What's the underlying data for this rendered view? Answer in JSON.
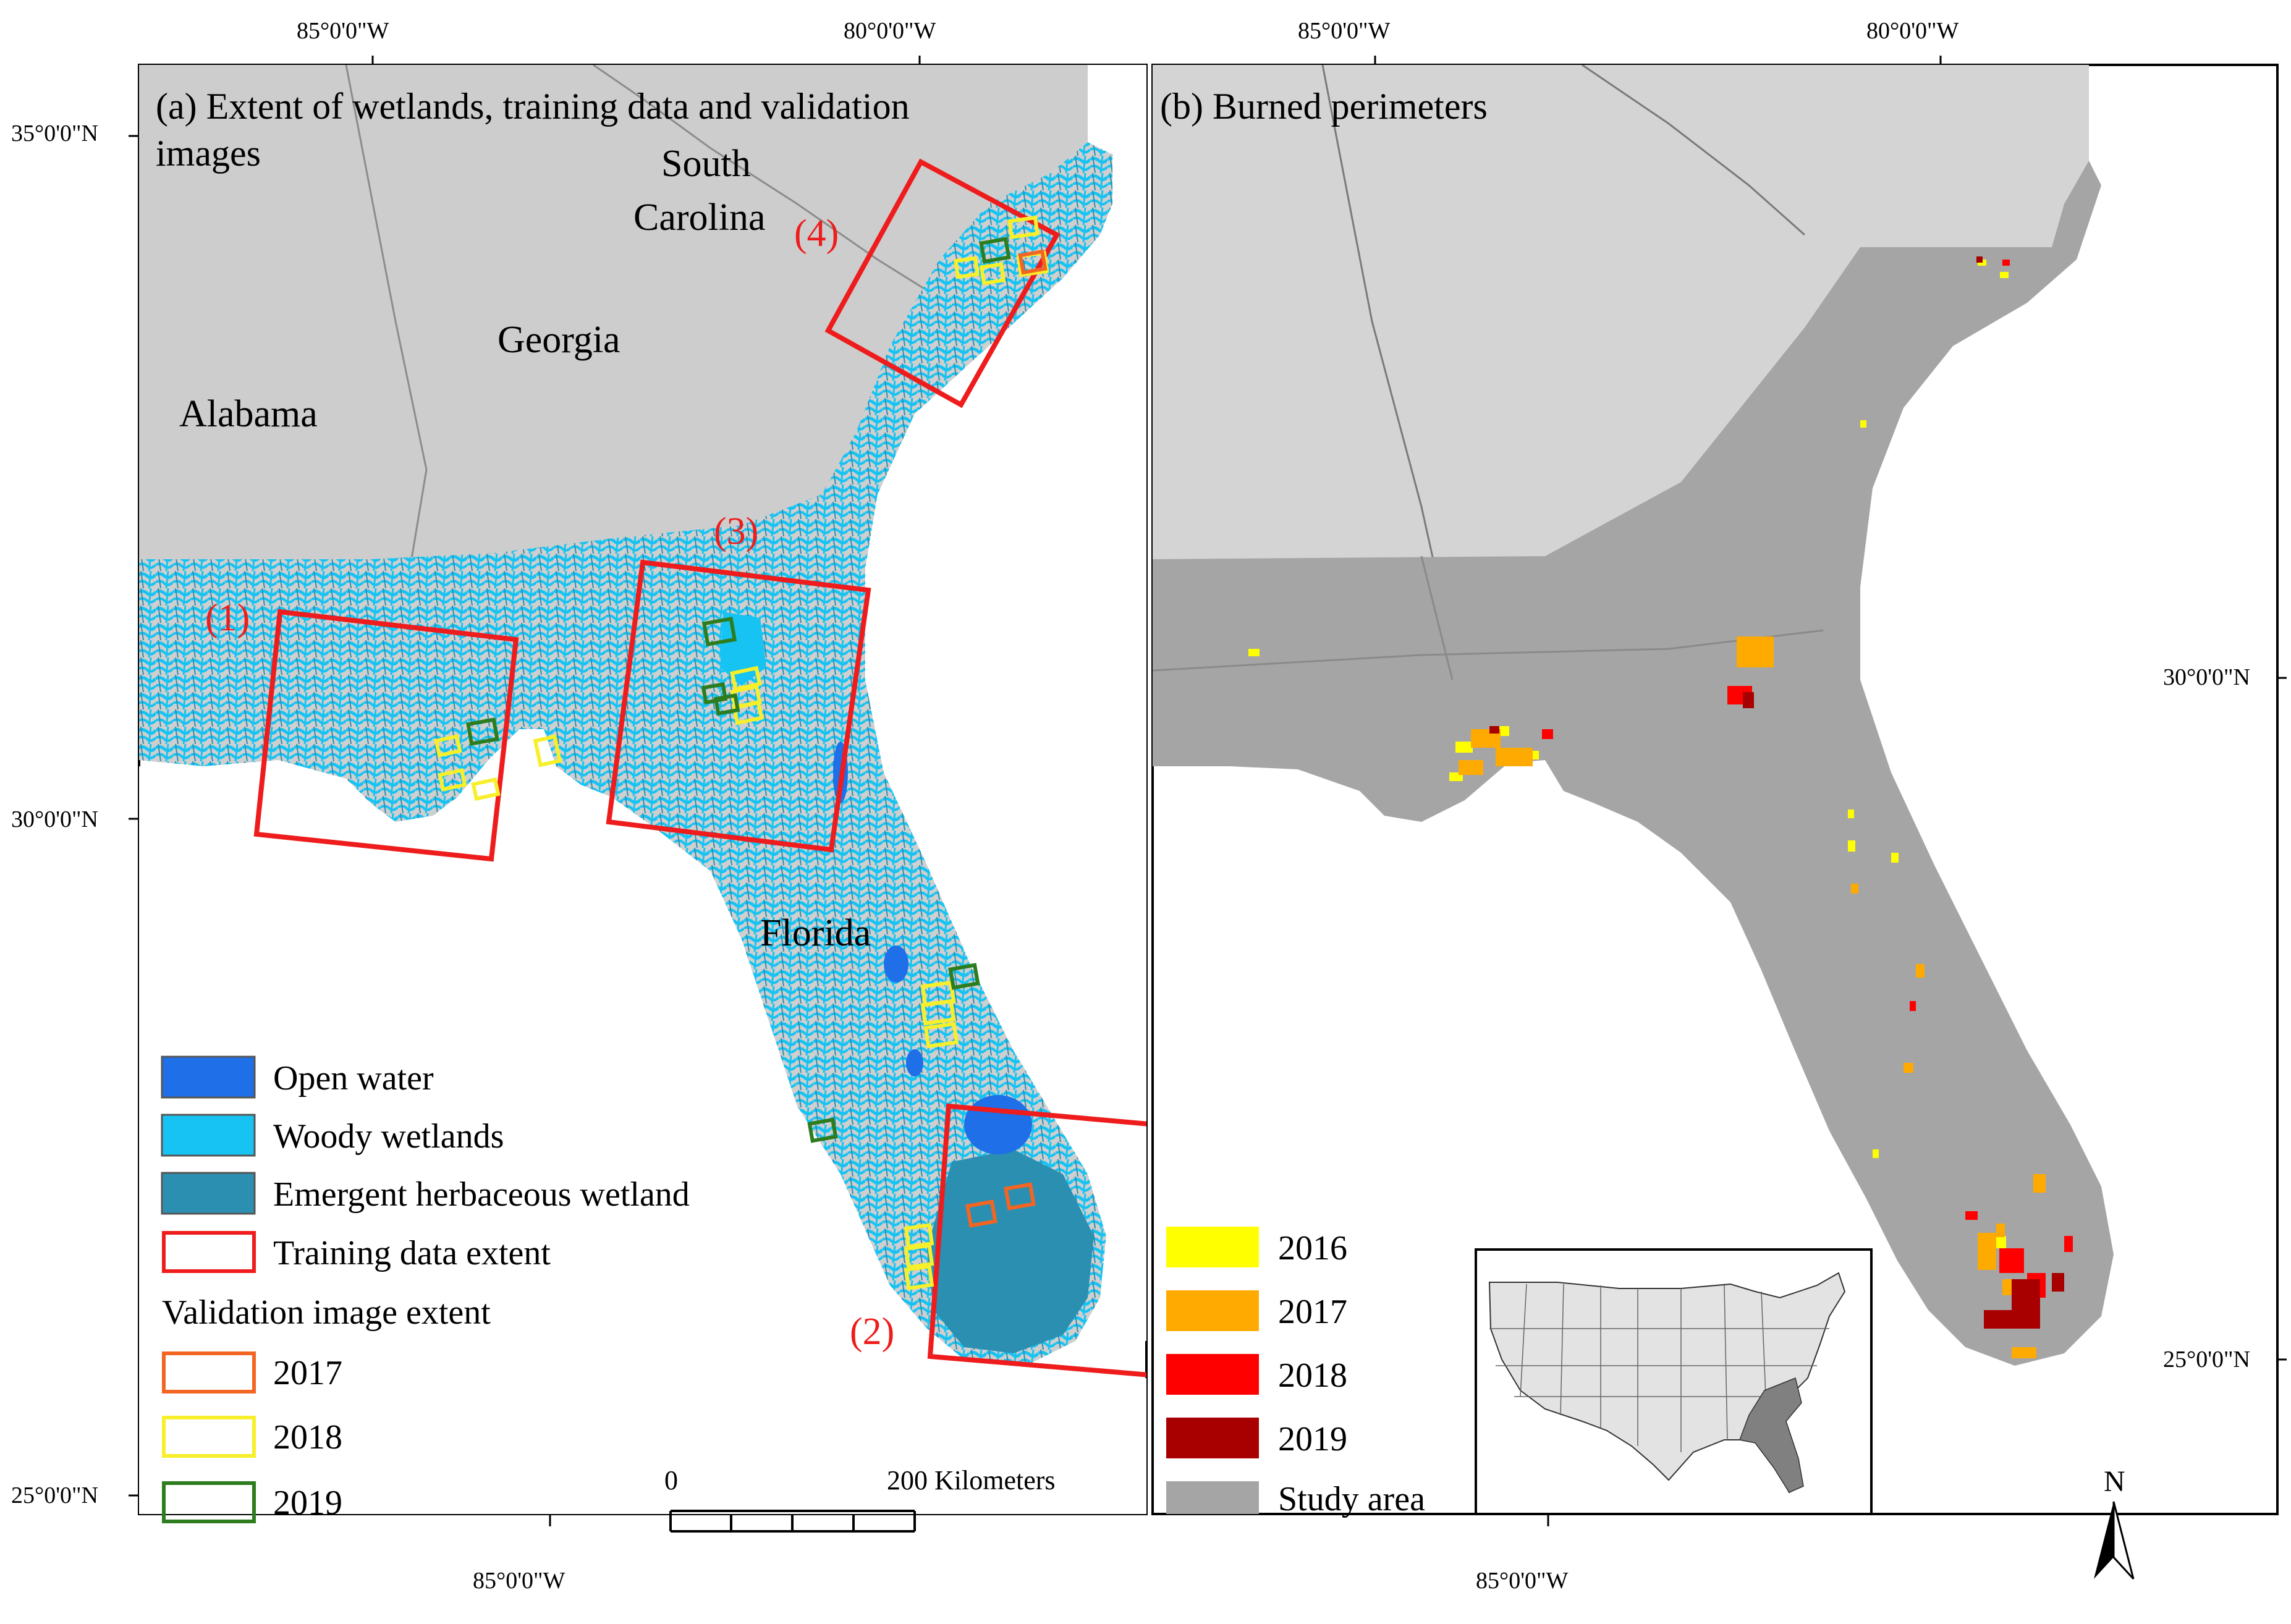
{
  "panel_a": {
    "title_line1": "(a) Extent of wetlands, training data and validation",
    "title_line2": "images",
    "states": {
      "south": "South",
      "carolina": "Carolina",
      "georgia": "Georgia",
      "alabama": "Alabama",
      "florida": "Florida"
    },
    "training_regions": [
      "(1)",
      "(2)",
      "(3)",
      "(4)"
    ],
    "legend": {
      "open_water": "Open water",
      "woody_wetlands": "Woody wetlands",
      "emergent": "Emergent herbaceous wetland",
      "training_extent": "Training data extent",
      "validation_header": "Validation image extent",
      "y2017": "2017",
      "y2018": "2018",
      "y2019": "2019"
    },
    "scale": {
      "zero": "0",
      "end": "200 Kilometers"
    },
    "ticks": {
      "top_left": "85°0'0\"W",
      "top_right": "80°0'0\"W",
      "bottom": "85°0'0\"W",
      "lat_35": "35°0'0\"N",
      "lat_30": "30°0'0\"N",
      "lat_25": "25°0'0\"N"
    }
  },
  "panel_b": {
    "title": "(b) Burned perimeters",
    "legend": {
      "y2016": "2016",
      "y2017": "2017",
      "y2018": "2018",
      "y2019": "2019",
      "study_area": "Study area"
    },
    "north": "N",
    "ticks": {
      "top_left": "85°0'0\"W",
      "top_right": "80°0'0\"W",
      "bottom": "85°0'0\"W",
      "lat_30": "30°0'0\"N",
      "lat_25": "25°0'0\"N"
    }
  },
  "colors": {
    "open_water": "#1f6fe8",
    "woody_wetlands": "#16c3f2",
    "emergent": "#2b8fb2",
    "training_extent": "#ee1c1c",
    "val_2017": "#f26522",
    "val_2018": "#f7ef2a",
    "val_2019": "#2d7d1f",
    "burn_2016": "#ffff00",
    "burn_2017": "#ffaa00",
    "burn_2018": "#ff0000",
    "burn_2019": "#a80000",
    "study_area": "#a5a5a5",
    "land": "#cdcdcd"
  }
}
